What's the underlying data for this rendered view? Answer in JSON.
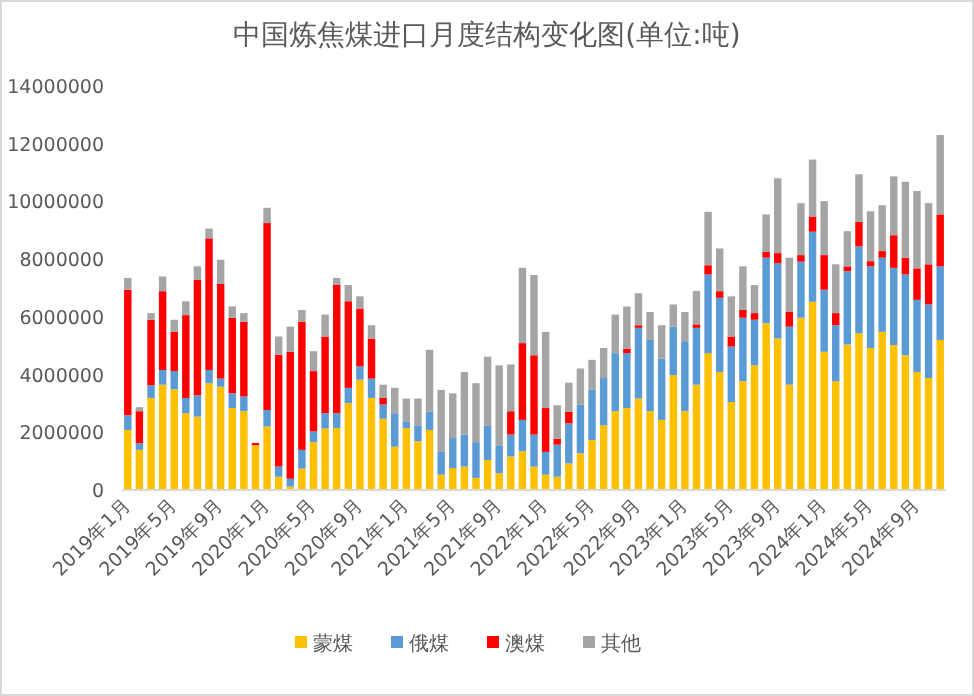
{
  "chart_data": {
    "type": "bar",
    "stacked": true,
    "title": "中国炼焦煤进口月度结构变化图(单位:吨)",
    "categories": [
      "2019年1月",
      null,
      null,
      null,
      "2019年5月",
      null,
      null,
      null,
      "2019年9月",
      null,
      null,
      null,
      "2020年1月",
      null,
      null,
      null,
      "2020年5月",
      null,
      null,
      null,
      "2020年9月",
      null,
      null,
      null,
      "2021年1月",
      null,
      null,
      null,
      "2021年5月",
      null,
      null,
      null,
      "2021年9月",
      null,
      null,
      null,
      "2022年1月",
      null,
      null,
      null,
      "2022年5月",
      null,
      null,
      null,
      "2022年9月",
      null,
      null,
      null,
      "2023年1月",
      null,
      null,
      null,
      "2023年5月",
      null,
      null,
      null,
      "2023年9月",
      null,
      null,
      null,
      "2024年1月",
      null,
      null,
      null,
      "2024年5月",
      null,
      null,
      null,
      "2024年9月",
      null,
      null
    ],
    "series": [
      {
        "name": "蒙煤",
        "color": "#ffc000",
        "values": [
          2080000,
          1390000,
          3190000,
          3650000,
          3490000,
          2660000,
          2540000,
          3700000,
          3580000,
          2840000,
          2730000,
          1550000,
          2200000,
          460000,
          120000,
          740000,
          1660000,
          2130000,
          2150000,
          3010000,
          3820000,
          3190000,
          2470000,
          1500000,
          2150000,
          1690000,
          2080000,
          530000,
          760000,
          810000,
          420000,
          1040000,
          580000,
          1160000,
          1340000,
          810000,
          530000,
          460000,
          920000,
          1270000,
          1730000,
          2240000,
          2730000,
          2840000,
          3170000,
          2730000,
          2430000,
          3980000,
          2730000,
          3650000,
          4740000,
          4090000,
          3050000,
          3770000,
          4320000,
          5780000,
          5250000,
          3650000,
          5970000,
          6520000,
          4790000,
          3770000,
          5040000,
          5430000,
          4920000,
          5480000,
          5020000,
          4670000,
          4090000,
          3880000,
          5200000
        ]
      },
      {
        "name": "俄煤",
        "color": "#5b9bd5",
        "values": [
          510000,
          230000,
          440000,
          510000,
          630000,
          530000,
          740000,
          460000,
          280000,
          510000,
          510000,
          0,
          570000,
          350000,
          270000,
          650000,
          370000,
          530000,
          510000,
          530000,
          460000,
          670000,
          490000,
          1160000,
          210000,
          550000,
          630000,
          790000,
          1040000,
          1110000,
          1240000,
          1200000,
          970000,
          760000,
          1090000,
          1110000,
          790000,
          1110000,
          1390000,
          1690000,
          1740000,
          1640000,
          2010000,
          1900000,
          2450000,
          2470000,
          2120000,
          1680000,
          2400000,
          1970000,
          2730000,
          2570000,
          1920000,
          2200000,
          1580000,
          2270000,
          2610000,
          2010000,
          1940000,
          2430000,
          2150000,
          1940000,
          2540000,
          3010000,
          2830000,
          2570000,
          2680000,
          2800000,
          2500000,
          2550000,
          2550000
        ]
      },
      {
        "name": "澳煤",
        "color": "#ff0000",
        "values": [
          4350000,
          1110000,
          2270000,
          2730000,
          1360000,
          2870000,
          4000000,
          4560000,
          3280000,
          2620000,
          2590000,
          80000,
          6480000,
          3880000,
          4400000,
          4440000,
          2090000,
          2660000,
          4460000,
          3000000,
          2010000,
          1390000,
          230000,
          0,
          0,
          0,
          0,
          0,
          0,
          0,
          0,
          0,
          0,
          810000,
          2660000,
          2750000,
          1520000,
          210000,
          400000,
          0,
          0,
          0,
          0,
          160000,
          90000,
          0,
          0,
          0,
          0,
          120000,
          320000,
          230000,
          350000,
          270000,
          230000,
          200000,
          350000,
          510000,
          230000,
          530000,
          1200000,
          420000,
          170000,
          850000,
          180000,
          230000,
          1130000,
          580000,
          1090000,
          1390000,
          1800000
        ]
      },
      {
        "name": "其他",
        "color": "#a5a5a5",
        "values": [
          410000,
          140000,
          230000,
          510000,
          420000,
          480000,
          470000,
          340000,
          840000,
          390000,
          300000,
          null,
          530000,
          630000,
          870000,
          410000,
          690000,
          760000,
          230000,
          560000,
          420000,
          460000,
          460000,
          880000,
          810000,
          930000,
          2150000,
          2150000,
          1550000,
          2170000,
          2040000,
          2380000,
          2770000,
          1620000,
          2610000,
          2780000,
          2640000,
          1160000,
          1010000,
          1250000,
          1040000,
          1040000,
          1340000,
          1460000,
          1110000,
          970000,
          1160000,
          770000,
          1040000,
          1160000,
          1850000,
          1480000,
          1390000,
          1510000,
          970000,
          1300000,
          2590000,
          1880000,
          1800000,
          1970000,
          1870000,
          1690000,
          1220000,
          1650000,
          1730000,
          1590000,
          2040000,
          2630000,
          2680000,
          2120000,
          2750000
        ]
      }
    ],
    "ylim": [
      0,
      14000000
    ],
    "yticks": [
      0,
      2000000,
      4000000,
      6000000,
      8000000,
      10000000,
      12000000,
      14000000
    ],
    "legend": "bottom"
  }
}
